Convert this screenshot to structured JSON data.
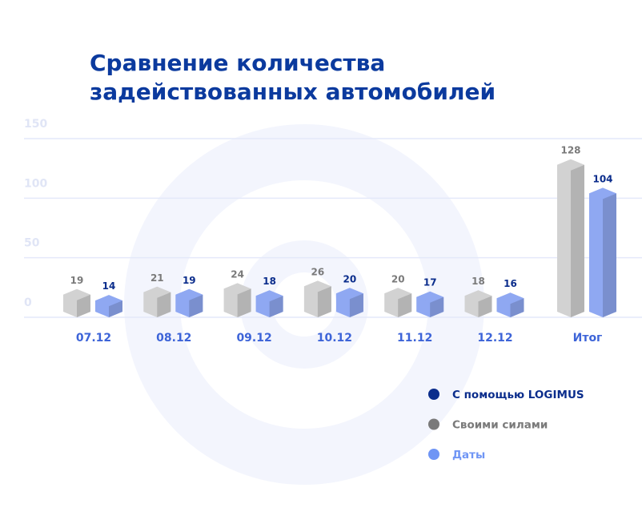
{
  "chart_data": {
    "type": "bar",
    "title": [
      "Сравнение количества",
      "задействованных автомобилей"
    ],
    "categories": [
      "07.12",
      "08.12",
      "09.12",
      "10.12",
      "11.12",
      "12.12",
      "Итог"
    ],
    "series": [
      {
        "name": "Своими силами",
        "color": "#d2d2d2",
        "label_color": "#7a7a7a",
        "values": [
          19,
          21,
          24,
          26,
          20,
          18,
          128
        ]
      },
      {
        "name": "С помощью  LOGIMUS",
        "color": "#8fa8f2",
        "label_color": "#0b2d8c",
        "values": [
          14,
          19,
          18,
          20,
          17,
          16,
          104
        ]
      }
    ],
    "legend": [
      {
        "label": "С помощью  LOGIMUS",
        "color": "#0b2d8c"
      },
      {
        "label": "Своими силами",
        "color": "#7a7a7a"
      },
      {
        "label": "Даты",
        "color": "#6f95f5"
      }
    ],
    "category_color": "#3d64d8",
    "ylim": [
      0,
      150
    ],
    "yticks": [
      0,
      50,
      100,
      150
    ],
    "grid": true
  }
}
